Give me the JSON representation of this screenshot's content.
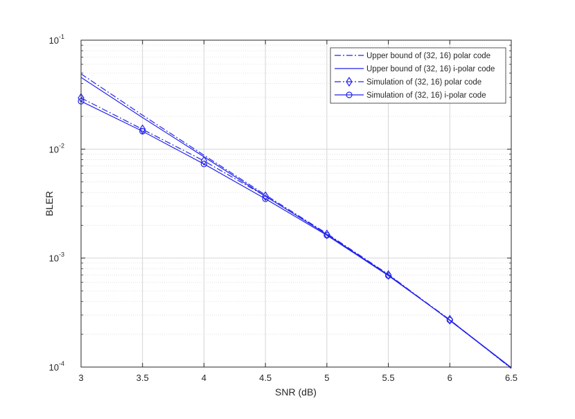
{
  "chart_data": {
    "type": "line",
    "title": "",
    "xlabel": "SNR (dB)",
    "ylabel": "BLER",
    "xlim": [
      3,
      6.5
    ],
    "ylim": [
      0.0001,
      0.1
    ],
    "yscale": "log",
    "grid": true,
    "minor_grid": true,
    "legend_position": "top-right",
    "x_ticks": [
      "3",
      "3.5",
      "4",
      "4.5",
      "5",
      "5.5",
      "6",
      "6.5"
    ],
    "y_ticks": [
      {
        "base": "10",
        "exp": "-4"
      },
      {
        "base": "10",
        "exp": "-3"
      },
      {
        "base": "10",
        "exp": "-2"
      },
      {
        "base": "10",
        "exp": "-1"
      }
    ],
    "x": [
      3,
      3.5,
      4,
      4.5,
      5,
      5.5,
      6,
      6.5
    ],
    "series": [
      {
        "name": "Upper bound of (32, 16) polar code",
        "style": "dashdot",
        "marker": "none",
        "color": "#2222ee",
        "values": [
          0.049,
          0.0205,
          0.0088,
          0.0038,
          0.00168,
          0.00071,
          0.000268,
          9.8e-05
        ]
      },
      {
        "name": "Upper bound of (32, 16) i-polar code",
        "style": "solid",
        "marker": "none",
        "color": "#2222ee",
        "values": [
          0.0455,
          0.0195,
          0.0085,
          0.0037,
          0.00165,
          0.0007,
          0.000268,
          9.8e-05
        ]
      },
      {
        "name": "Simulation of (32, 16) polar code",
        "style": "dashdot",
        "marker": "diamond",
        "color": "#2222ee",
        "values": [
          0.0295,
          0.0152,
          0.0078,
          0.0037,
          0.00165,
          0.0007,
          0.000272,
          9.7e-05
        ]
      },
      {
        "name": "Simulation of (32, 16) i-polar code",
        "style": "solid",
        "marker": "circle",
        "color": "#2222ee",
        "values": [
          0.0275,
          0.0146,
          0.0073,
          0.0035,
          0.00162,
          0.00069,
          0.00027,
          9.9e-05
        ]
      }
    ],
    "marker_count": 7
  }
}
